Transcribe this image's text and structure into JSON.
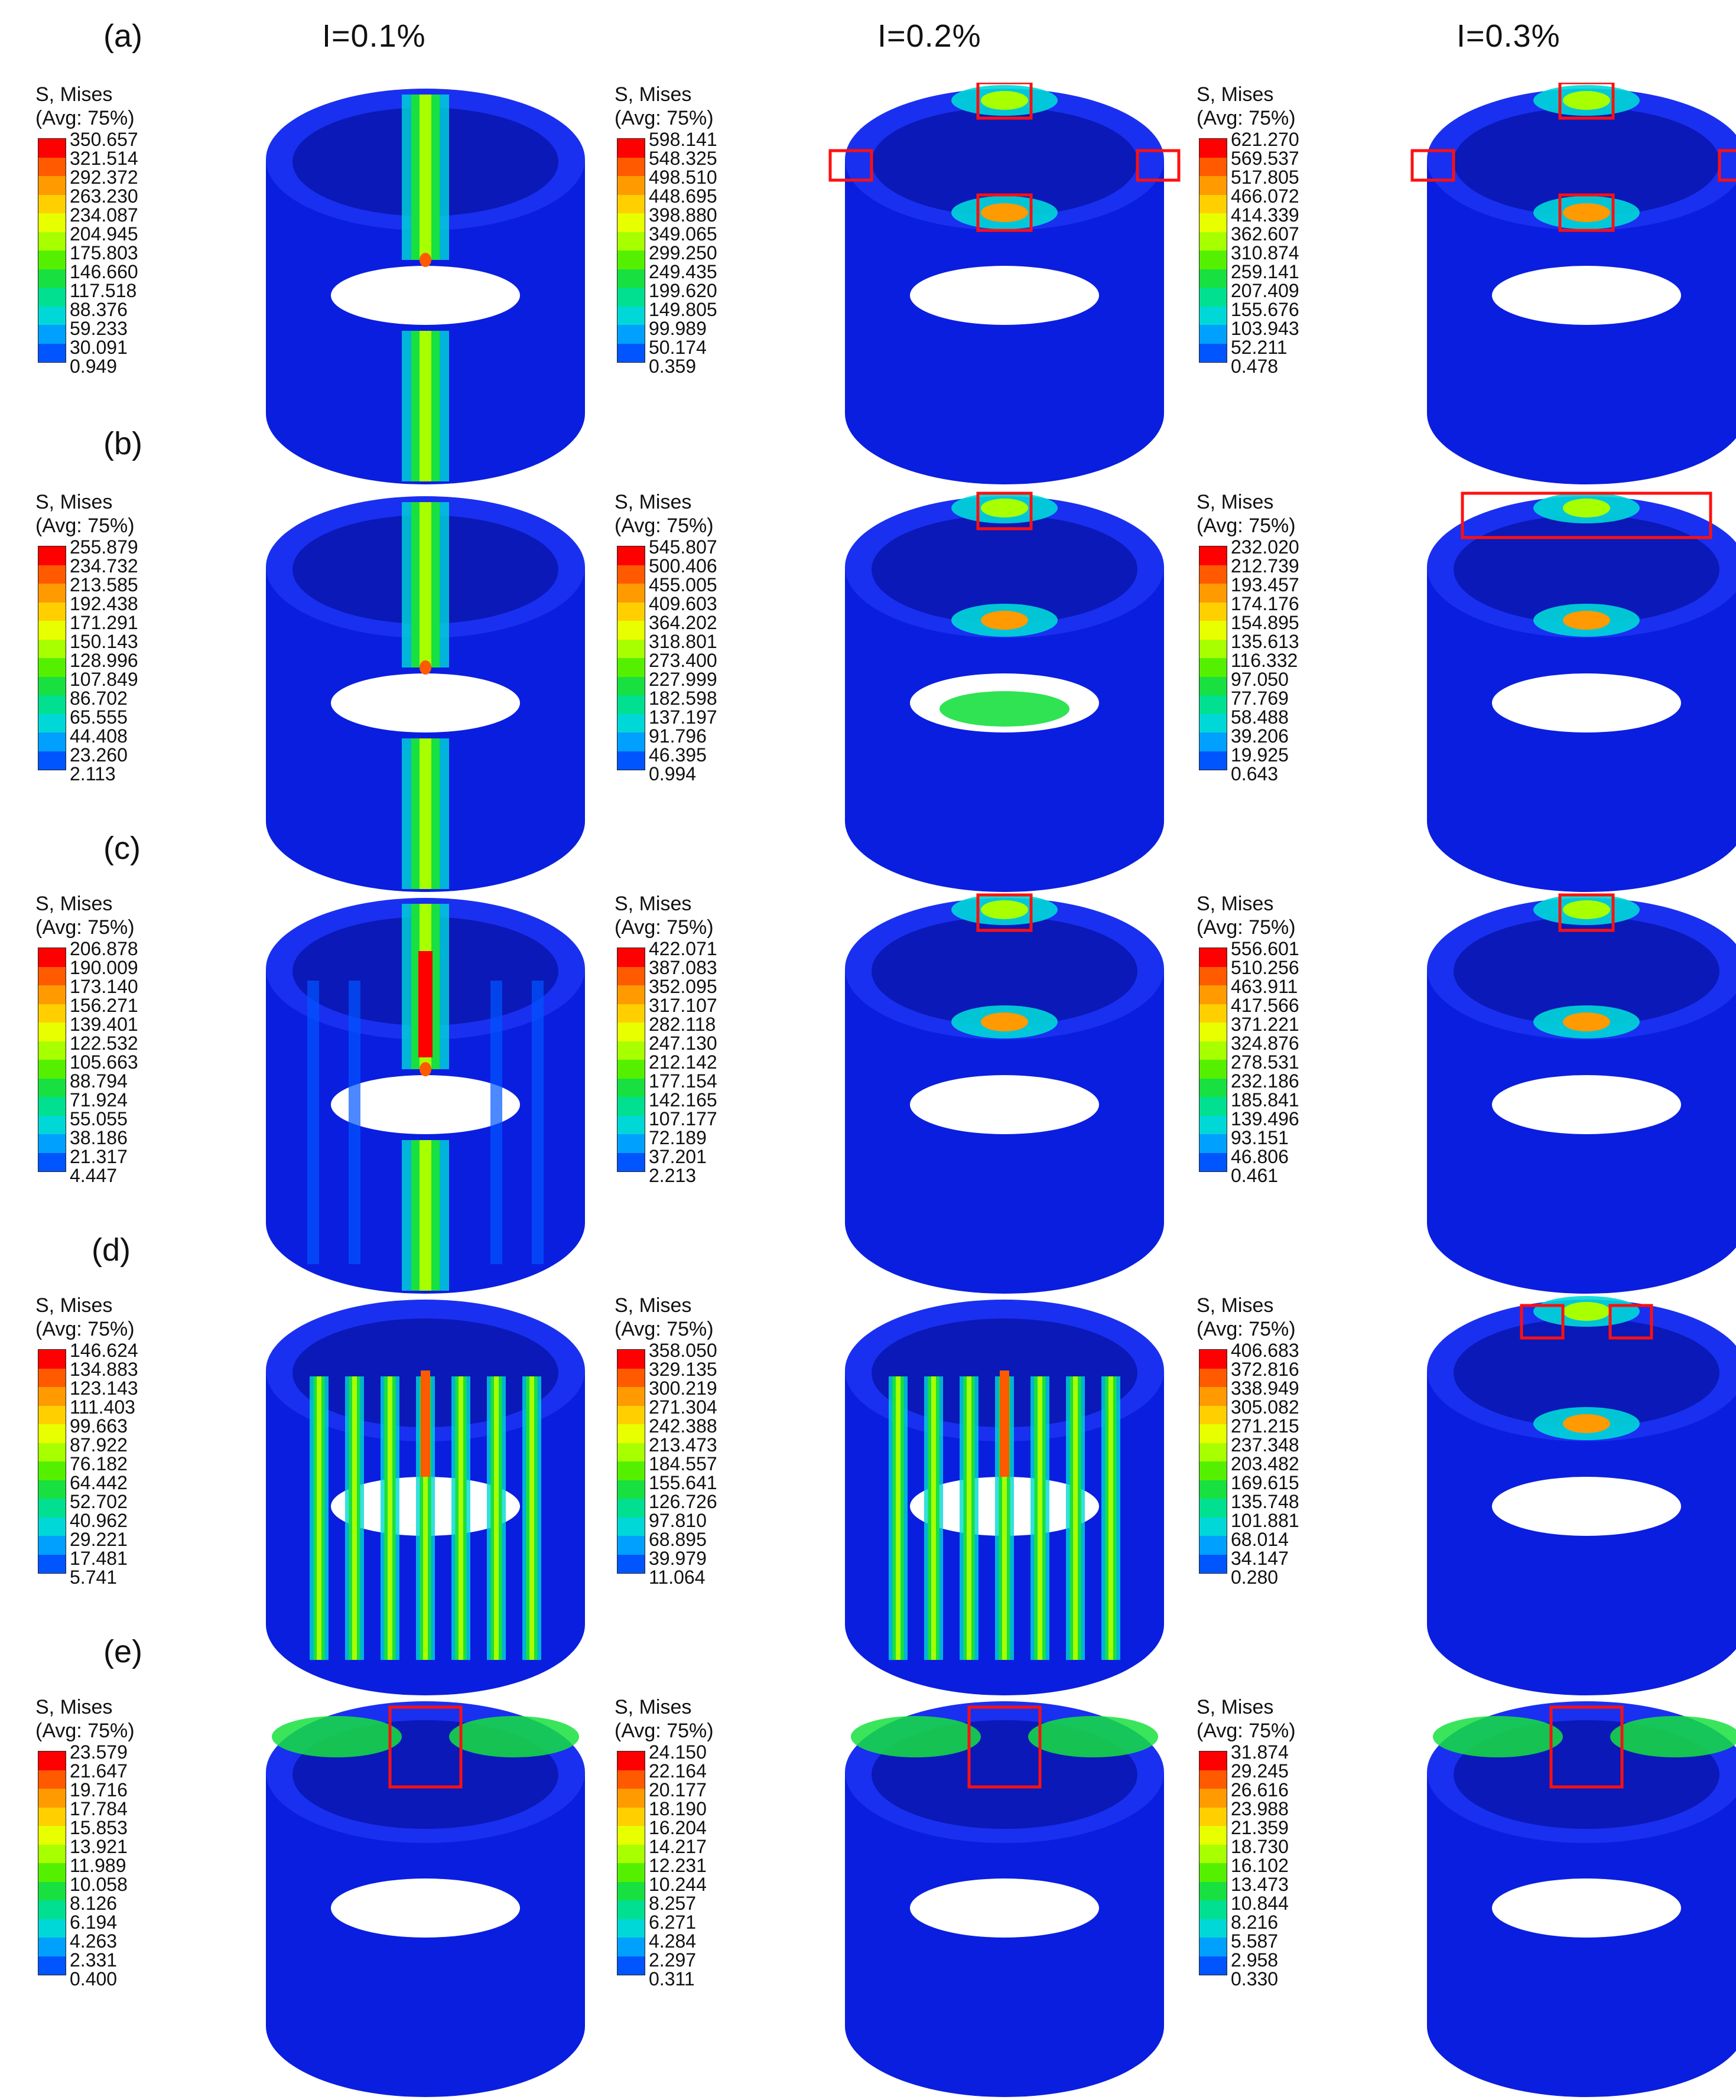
{
  "columns": [
    "I=0.1%",
    "I=0.2%",
    "I=0.3%"
  ],
  "legend_title_line1": "S, Mises",
  "legend_title_line2": "(Avg: 75%)",
  "legend_colors": [
    "#ff0000",
    "#ff5a00",
    "#ff9a00",
    "#ffcf00",
    "#e8ff00",
    "#a8ff00",
    "#55f000",
    "#18e040",
    "#00e090",
    "#00d8d8",
    "#00a0ff",
    "#0055ff",
    "#0000ff"
  ],
  "rows": [
    {
      "label": "(a)",
      "cells": [
        {
          "legend": [
            "350.657",
            "321.514",
            "292.372",
            "263.230",
            "234.087",
            "204.945",
            "175.803",
            "146.660",
            "117.518",
            "88.376",
            "59.233",
            "30.091",
            "0.949"
          ]
        },
        {
          "legend": [
            "598.141",
            "548.325",
            "498.510",
            "448.695",
            "398.880",
            "349.065",
            "299.250",
            "249.435",
            "199.620",
            "149.805",
            "99.989",
            "50.174",
            "0.359"
          ]
        },
        {
          "legend": [
            "621.270",
            "569.537",
            "517.805",
            "466.072",
            "414.339",
            "362.607",
            "310.874",
            "259.141",
            "207.409",
            "155.676",
            "103.943",
            "52.211",
            "0.478"
          ]
        }
      ]
    },
    {
      "label": "(b)",
      "cells": [
        {
          "legend": [
            "255.879",
            "234.732",
            "213.585",
            "192.438",
            "171.291",
            "150.143",
            "128.996",
            "107.849",
            "86.702",
            "65.555",
            "44.408",
            "23.260",
            "2.113"
          ]
        },
        {
          "legend": [
            "545.807",
            "500.406",
            "455.005",
            "409.603",
            "364.202",
            "318.801",
            "273.400",
            "227.999",
            "182.598",
            "137.197",
            "91.796",
            "46.395",
            "0.994"
          ]
        },
        {
          "legend": [
            "232.020",
            "212.739",
            "193.457",
            "174.176",
            "154.895",
            "135.613",
            "116.332",
            "97.050",
            "77.769",
            "58.488",
            "39.206",
            "19.925",
            "0.643"
          ]
        }
      ]
    },
    {
      "label": "(c)",
      "cells": [
        {
          "legend": [
            "206.878",
            "190.009",
            "173.140",
            "156.271",
            "139.401",
            "122.532",
            "105.663",
            "88.794",
            "71.924",
            "55.055",
            "38.186",
            "21.317",
            "4.447"
          ]
        },
        {
          "legend": [
            "422.071",
            "387.083",
            "352.095",
            "317.107",
            "282.118",
            "247.130",
            "212.142",
            "177.154",
            "142.165",
            "107.177",
            "72.189",
            "37.201",
            "2.213"
          ]
        },
        {
          "legend": [
            "556.601",
            "510.256",
            "463.911",
            "417.566",
            "371.221",
            "324.876",
            "278.531",
            "232.186",
            "185.841",
            "139.496",
            "93.151",
            "46.806",
            "0.461"
          ]
        }
      ]
    },
    {
      "label": "(d)",
      "cells": [
        {
          "legend": [
            "146.624",
            "134.883",
            "123.143",
            "111.403",
            "99.663",
            "87.922",
            "76.182",
            "64.442",
            "52.702",
            "40.962",
            "29.221",
            "17.481",
            "5.741"
          ]
        },
        {
          "legend": [
            "358.050",
            "329.135",
            "300.219",
            "271.304",
            "242.388",
            "213.473",
            "184.557",
            "155.641",
            "126.726",
            "97.810",
            "68.895",
            "39.979",
            "11.064"
          ]
        },
        {
          "legend": [
            "406.683",
            "372.816",
            "338.949",
            "305.082",
            "271.215",
            "237.348",
            "203.482",
            "169.615",
            "135.748",
            "101.881",
            "68.014",
            "34.147",
            "0.280"
          ]
        }
      ]
    },
    {
      "label": "(e)",
      "cells": [
        {
          "legend": [
            "23.579",
            "21.647",
            "19.716",
            "17.784",
            "15.853",
            "13.921",
            "11.989",
            "10.058",
            "8.126",
            "6.194",
            "4.263",
            "2.331",
            "0.400"
          ]
        },
        {
          "legend": [
            "24.150",
            "22.164",
            "20.177",
            "18.190",
            "16.204",
            "14.217",
            "12.231",
            "10.244",
            "8.257",
            "6.271",
            "4.284",
            "2.297",
            "0.311"
          ]
        },
        {
          "legend": [
            "31.874",
            "29.245",
            "26.616",
            "23.988",
            "21.359",
            "18.730",
            "16.102",
            "13.473",
            "10.844",
            "8.216",
            "5.587",
            "2.958",
            "0.330"
          ]
        }
      ]
    }
  ]
}
